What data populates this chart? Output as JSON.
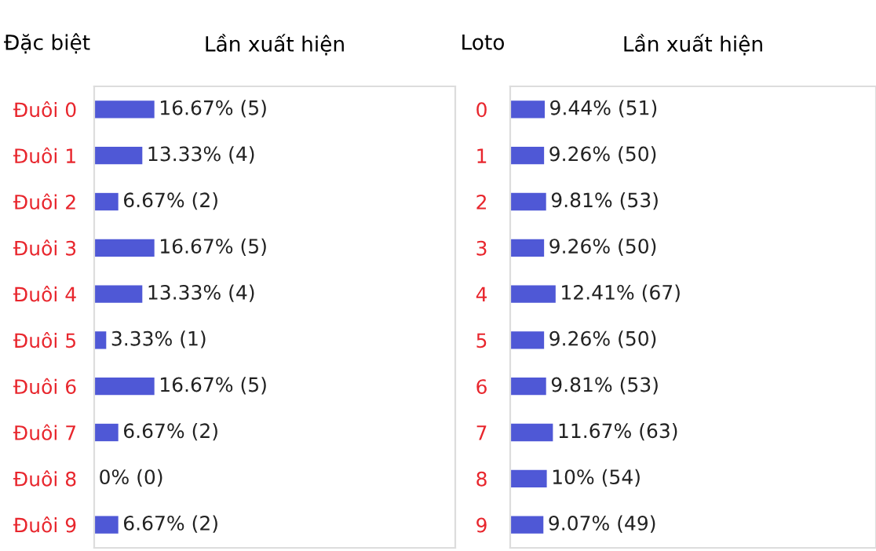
{
  "chart_data": [
    {
      "type": "bar",
      "orientation": "horizontal",
      "title": "Lần xuất hiện",
      "ylabel": "Đặc biệt",
      "categories": [
        "Đuôi 0",
        "Đuôi 1",
        "Đuôi 2",
        "Đuôi 3",
        "Đuôi 4",
        "Đuôi 5",
        "Đuôi 6",
        "Đuôi 7",
        "Đuôi 8",
        "Đuôi 9"
      ],
      "values": [
        16.67,
        13.33,
        6.67,
        16.67,
        13.33,
        3.33,
        16.67,
        6.67,
        0,
        6.67
      ],
      "value_labels": [
        "16.67% (5)",
        "13.33% (4)",
        "6.67% (2)",
        "16.67% (5)",
        "13.33% (4)",
        "3.33% (1)",
        "16.67% (5)",
        "6.67% (2)",
        "0% (0)",
        "6.67% (2)"
      ],
      "color": "#4f58d6",
      "xlim": [
        0,
        100
      ]
    },
    {
      "type": "bar",
      "orientation": "horizontal",
      "title": "Lần xuất hiện",
      "ylabel": "Loto",
      "categories": [
        "0",
        "1",
        "2",
        "3",
        "4",
        "5",
        "6",
        "7",
        "8",
        "9"
      ],
      "values": [
        9.44,
        9.26,
        9.81,
        9.26,
        12.41,
        9.26,
        9.81,
        11.67,
        10,
        9.07
      ],
      "value_labels": [
        "9.44% (51)",
        "9.26% (50)",
        "9.81% (53)",
        "9.26% (50)",
        "12.41% (67)",
        "9.26% (50)",
        "9.81% (53)",
        "11.67% (63)",
        "10% (54)",
        "9.07% (49)"
      ],
      "color": "#4f58d6",
      "xlim": [
        0,
        100
      ]
    }
  ]
}
